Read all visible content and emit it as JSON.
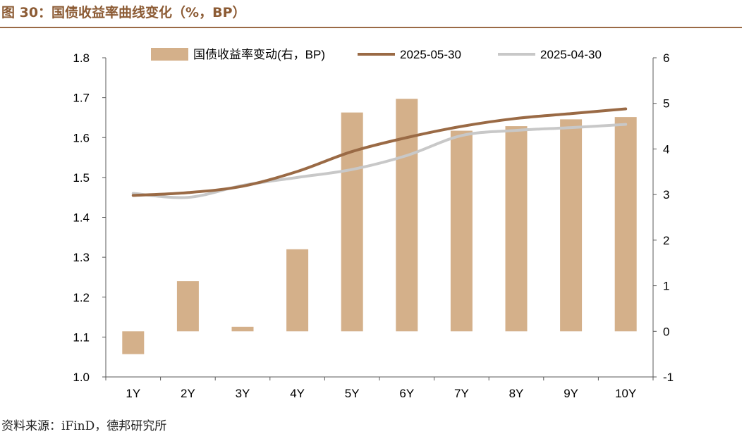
{
  "header": {
    "title": "图 30：国债收益率曲线变化（%，BP）"
  },
  "footer": {
    "source": "资料来源：iFinD，德邦研究所"
  },
  "chart_data": {
    "type": "bar+line",
    "categories": [
      "1Y",
      "2Y",
      "3Y",
      "4Y",
      "5Y",
      "6Y",
      "7Y",
      "8Y",
      "9Y",
      "10Y"
    ],
    "series": [
      {
        "name": "国债收益率变动(右，BP)",
        "type": "bar",
        "axis": "right",
        "color": "#D4B08A",
        "values": [
          -0.5,
          1.1,
          0.1,
          1.8,
          4.8,
          5.1,
          4.4,
          4.5,
          4.65,
          4.7
        ]
      },
      {
        "name": "2025-05-30",
        "type": "line",
        "axis": "left",
        "color": "#9A6A45",
        "values": [
          1.455,
          1.462,
          1.478,
          1.515,
          1.565,
          1.6,
          1.628,
          1.648,
          1.66,
          1.672
        ]
      },
      {
        "name": "2025-04-30",
        "type": "line",
        "axis": "left",
        "color": "#C8C8C8",
        "values": [
          1.46,
          1.45,
          1.48,
          1.5,
          1.52,
          1.555,
          1.605,
          1.618,
          1.625,
          1.633
        ]
      }
    ],
    "left_axis": {
      "ylim": [
        1.0,
        1.8
      ],
      "ticks": [
        "1.0",
        "1.1",
        "1.2",
        "1.3",
        "1.4",
        "1.5",
        "1.6",
        "1.7",
        "1.8"
      ]
    },
    "right_axis": {
      "ylim": [
        -1,
        6
      ],
      "ticks": [
        "-1",
        "0",
        "1",
        "2",
        "3",
        "4",
        "5",
        "6"
      ]
    },
    "grid": false,
    "legend": "top"
  }
}
